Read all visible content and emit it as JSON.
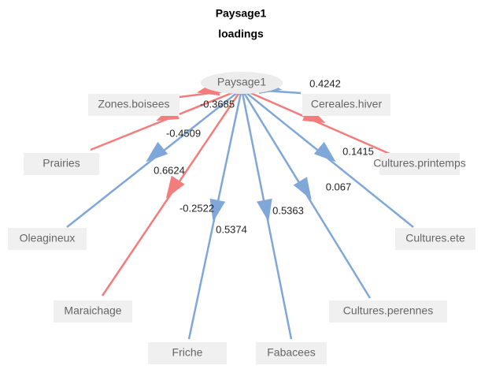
{
  "title": "Paysage1",
  "subtitle": "loadings",
  "latent": "Paysage1",
  "edges": [
    {
      "to": "Zones.boisees",
      "value": -0.3685,
      "color": "#f47c7c"
    },
    {
      "to": "Cereales.hiver",
      "value": 0.4242,
      "color": "#7fa7d9"
    },
    {
      "to": "Prairies",
      "value": -0.4509,
      "color": "#f47c7c"
    },
    {
      "to": "Oleagineux",
      "value": 0.6624,
      "color": "#7fa7d9"
    },
    {
      "to": "Maraichage",
      "value": -0.2522,
      "color": "#f47c7c"
    },
    {
      "to": "Friche",
      "value": 0.5374,
      "color": "#7fa7d9"
    },
    {
      "to": "Fabacees",
      "value": 0.5363,
      "color": "#7fa7d9"
    },
    {
      "to": "Cultures.perennes",
      "value": 0.067,
      "color": "#7fa7d9"
    },
    {
      "to": "Cultures.ete",
      "value": 0.1415,
      "color": "#7fa7d9"
    },
    {
      "to": "Cultures.printemps",
      "color": "#f47c7c"
    }
  ]
}
